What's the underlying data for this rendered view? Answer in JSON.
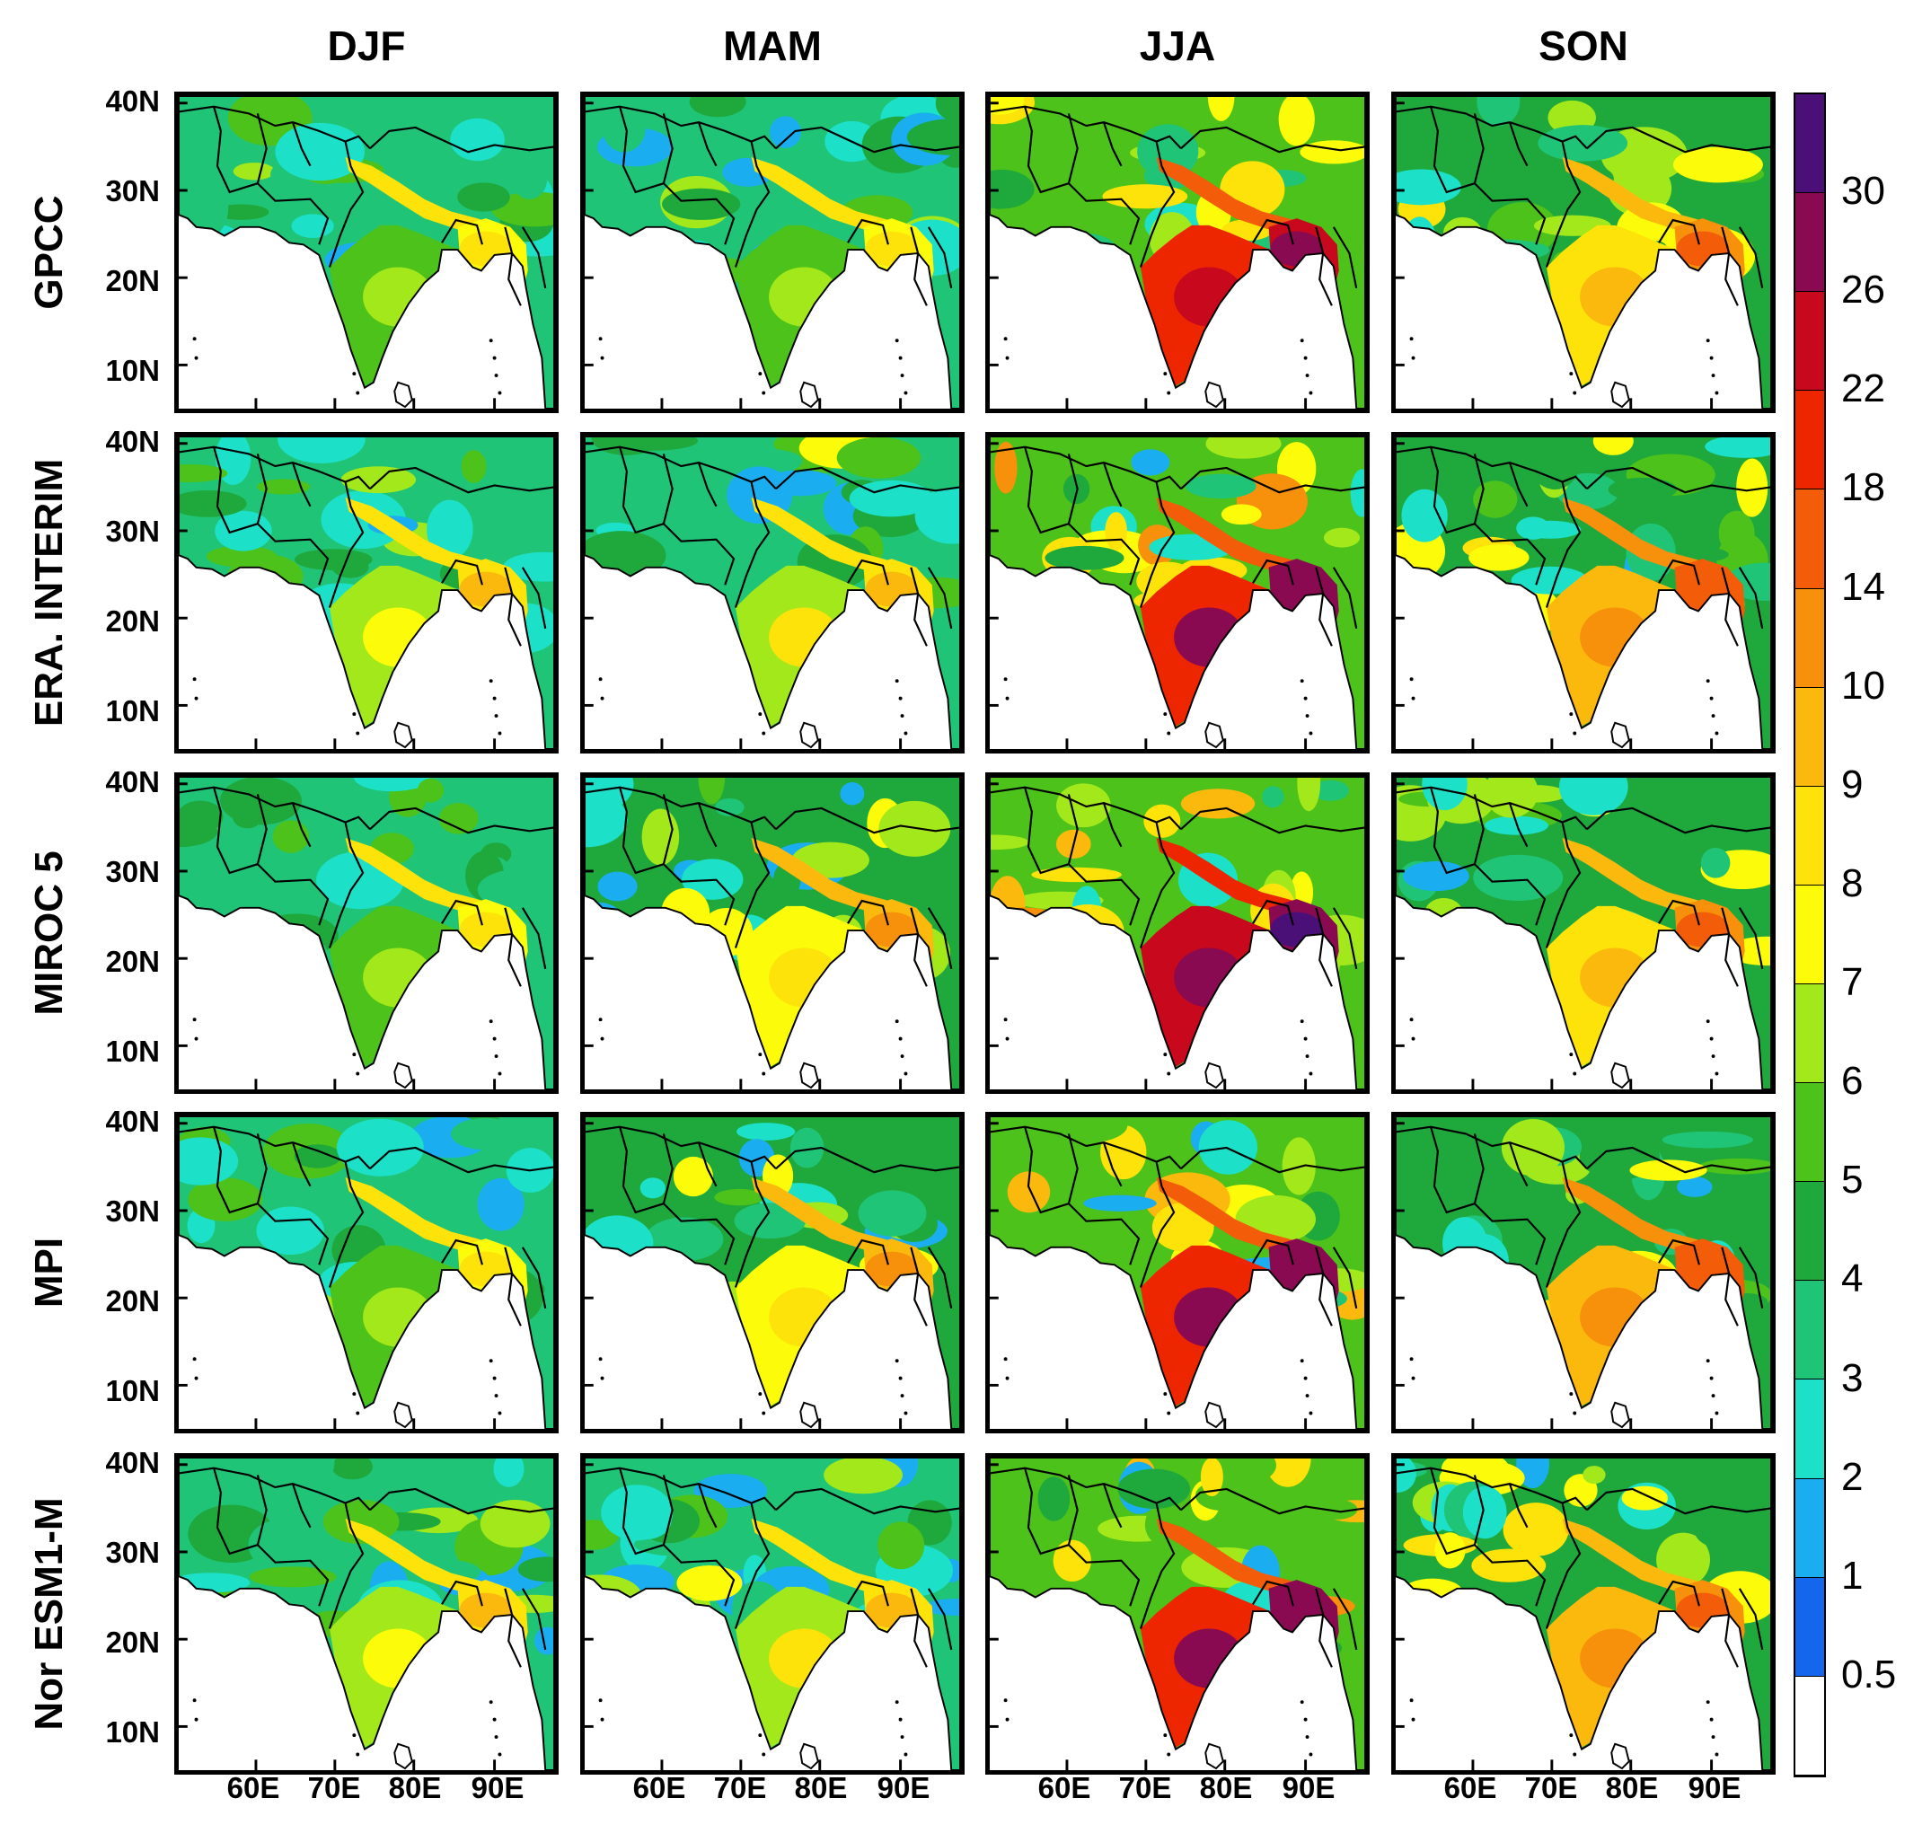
{
  "columns": [
    "DJF",
    "MAM",
    "JJA",
    "SON"
  ],
  "rows": [
    "GPCC",
    "ERA. INTERIM",
    "MIROC 5",
    "MPI",
    "Nor ESM1-M"
  ],
  "lat_ticks": [
    "40N",
    "30N",
    "20N",
    "10N"
  ],
  "lon_ticks": [
    "60E",
    "70E",
    "80E",
    "90E"
  ],
  "colorbar": {
    "labels": [
      "30",
      "26",
      "22",
      "18",
      "14",
      "10",
      "9",
      "8",
      "7",
      "6",
      "5",
      "4",
      "3",
      "2",
      "1",
      "0.5"
    ],
    "colors": [
      "#4b0f78",
      "#8a0a52",
      "#c8081d",
      "#ee2600",
      "#f35c08",
      "#f7900a",
      "#fbb90d",
      "#fde30a",
      "#fcfc0a",
      "#a3e81a",
      "#4cc21a",
      "#1fa83c",
      "#20c477",
      "#1ce0c8",
      "#1aaef0",
      "#1466ec",
      "#ffffff"
    ]
  },
  "panel_intensity": {
    "GPCC": [
      0.25,
      0.3,
      0.85,
      0.55
    ],
    "ERA. INTERIM": [
      0.35,
      0.4,
      0.9,
      0.6
    ],
    "MIROC 5": [
      0.3,
      0.45,
      0.95,
      0.55
    ],
    "MPI": [
      0.3,
      0.45,
      0.9,
      0.62
    ],
    "Nor ESM1-M": [
      0.35,
      0.4,
      0.88,
      0.58
    ]
  }
}
